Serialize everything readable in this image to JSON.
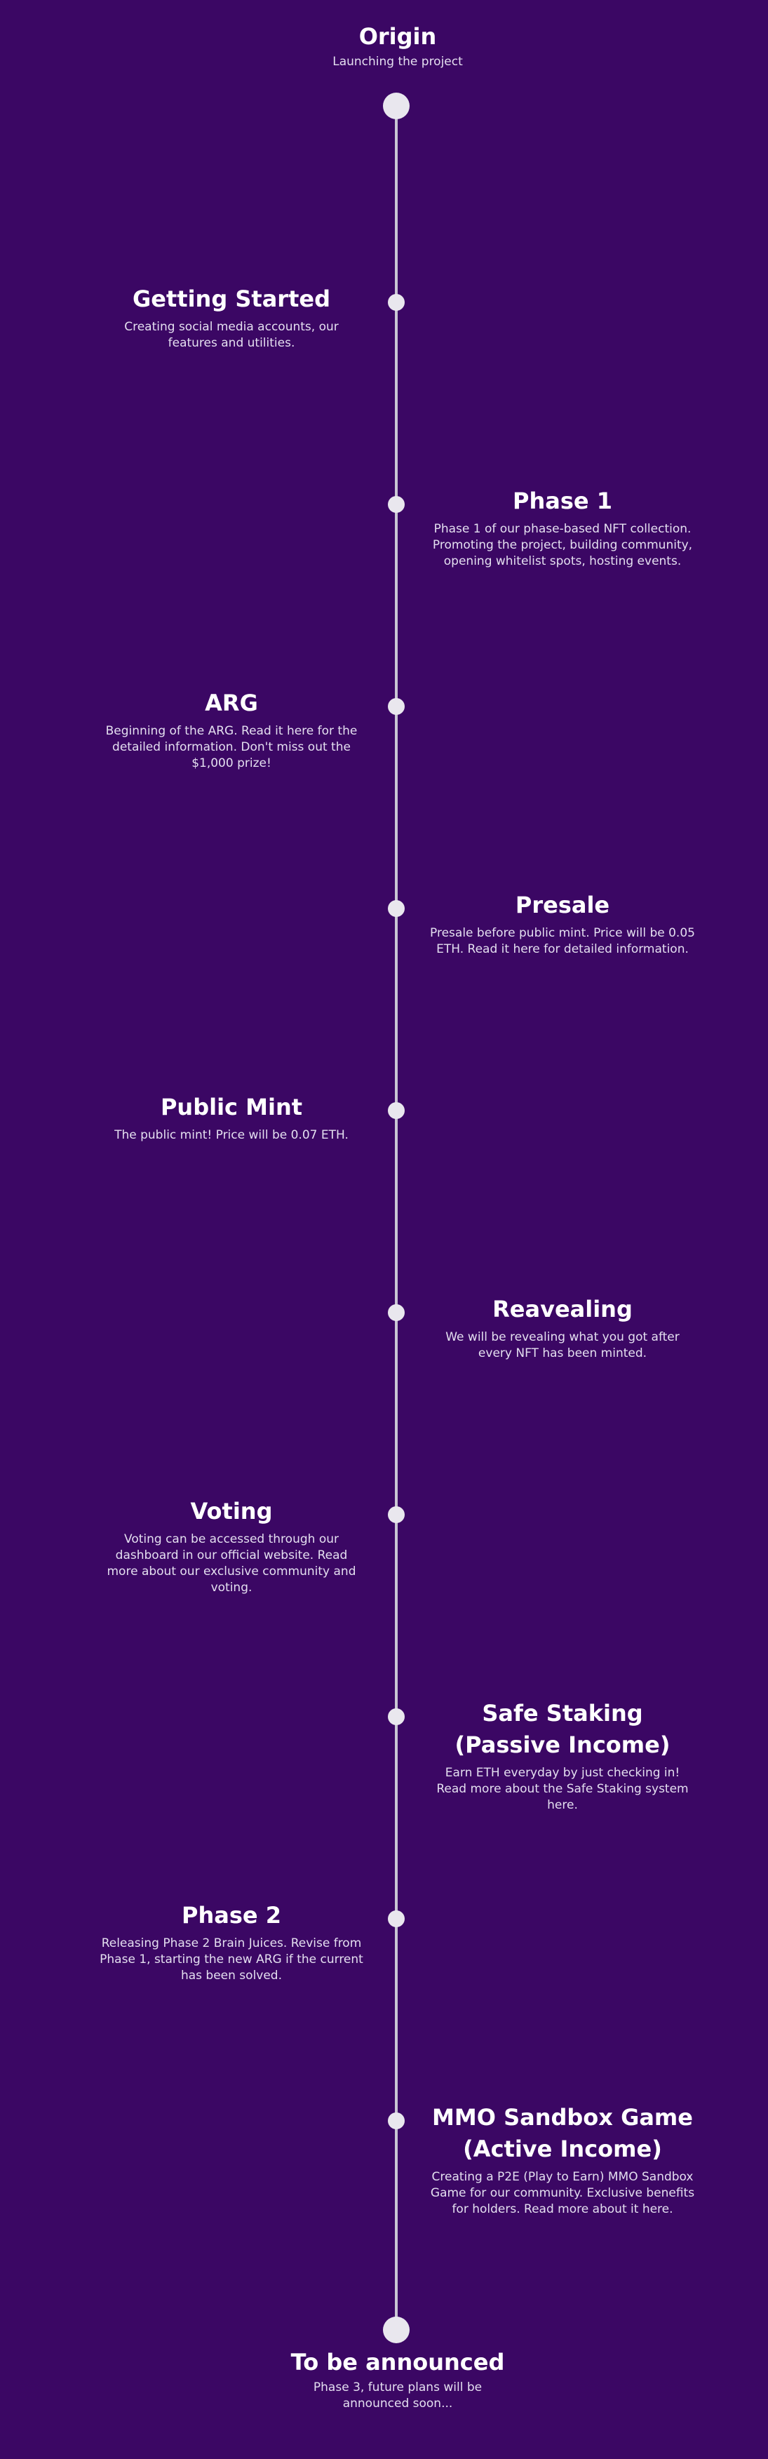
{
  "origin": {
    "title": "Origin",
    "desc": "Launching the project"
  },
  "milestones": [
    {
      "title": "Getting Started",
      "desc": "Creating social media accounts, our features and utilities."
    },
    {
      "title": "Phase 1",
      "desc": "Phase 1 of our phase-based NFT collection. Promoting the project, building community, opening whitelist spots, hosting events."
    },
    {
      "title": "ARG",
      "desc": "Beginning of the ARG. Read it here for the detailed information. Don't miss out the $1,000 prize!"
    },
    {
      "title": "Presale",
      "desc": "Presale before public mint. Price will be 0.05 ETH. Read it here for detailed information."
    },
    {
      "title": "Public Mint",
      "desc": "The public mint! Price will be 0.07 ETH."
    },
    {
      "title": "Reavealing",
      "desc": "We will be revealing what you got after every NFT has been minted."
    },
    {
      "title": "Voting",
      "desc": "Voting can be accessed through our dashboard in our official website. Read more about our exclusive community and voting."
    },
    {
      "title": "Safe Staking (Passive Income)",
      "desc": "Earn ETH everyday by just checking in! Read more about the Safe Staking system here."
    },
    {
      "title": "Phase 2",
      "desc": "Releasing Phase 2 Brain Juices. Revise from Phase 1, starting the new ARG if the current has been solved."
    },
    {
      "title": "MMO Sandbox Game (Active Income)",
      "desc": "Creating a P2E (Play to Earn) MMO Sandbox Game for our community. Exclusive benefits for holders. Read more about it here."
    }
  ],
  "end": {
    "title": "To be announced",
    "desc": "Phase 3, future plans will be announced soon..."
  }
}
